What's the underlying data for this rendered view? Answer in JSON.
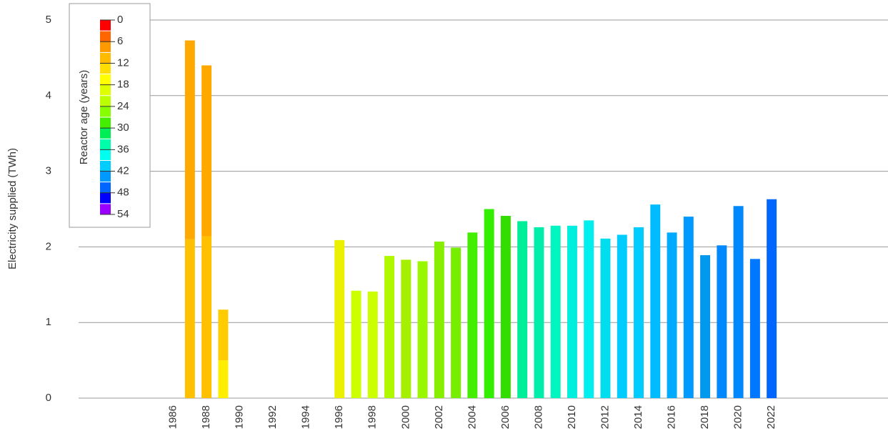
{
  "chart_data": {
    "type": "bar",
    "y_label": "Electricity supplied (TWh)",
    "xlim": [
      1980,
      2029
    ],
    "xticks": [
      1986,
      1988,
      1990,
      1992,
      1994,
      1996,
      1998,
      2000,
      2002,
      2004,
      2006,
      2008,
      2010,
      2012,
      2014,
      2016,
      2018,
      2020,
      2022
    ],
    "ylim": [
      0,
      5
    ],
    "yticks": [
      0,
      1,
      2,
      3,
      4,
      5
    ],
    "grid": true,
    "bars": [
      {
        "x": 1987,
        "segments": [
          {
            "value": 2.1,
            "color": "#ffc000"
          },
          {
            "value": 2.63,
            "color": "#ffa800"
          }
        ]
      },
      {
        "x": 1988,
        "segments": [
          {
            "value": 2.14,
            "color": "#ffc000"
          },
          {
            "value": 2.26,
            "color": "#ffa800"
          }
        ]
      },
      {
        "x": 1989,
        "segments": [
          {
            "value": 0.5,
            "color": "#ffee00"
          },
          {
            "value": 0.67,
            "color": "#ffcc00"
          }
        ]
      },
      {
        "x": 1996,
        "segments": [
          {
            "value": 2.09,
            "color": "#eaf000"
          }
        ]
      },
      {
        "x": 1997,
        "segments": [
          {
            "value": 1.42,
            "color": "#ccff00"
          }
        ]
      },
      {
        "x": 1998,
        "segments": [
          {
            "value": 1.41,
            "color": "#ccff00"
          }
        ]
      },
      {
        "x": 1999,
        "segments": [
          {
            "value": 1.88,
            "color": "#b0f800"
          }
        ]
      },
      {
        "x": 2000,
        "segments": [
          {
            "value": 1.83,
            "color": "#a5f000"
          }
        ]
      },
      {
        "x": 2001,
        "segments": [
          {
            "value": 1.81,
            "color": "#99f800"
          }
        ]
      },
      {
        "x": 2002,
        "segments": [
          {
            "value": 2.07,
            "color": "#88ee00"
          }
        ]
      },
      {
        "x": 2003,
        "segments": [
          {
            "value": 1.99,
            "color": "#77ee00"
          }
        ]
      },
      {
        "x": 2004,
        "segments": [
          {
            "value": 2.19,
            "color": "#44ee00"
          }
        ]
      },
      {
        "x": 2005,
        "segments": [
          {
            "value": 2.5,
            "color": "#33ee00"
          }
        ]
      },
      {
        "x": 2006,
        "segments": [
          {
            "value": 2.41,
            "color": "#33dd00"
          }
        ]
      },
      {
        "x": 2007,
        "segments": [
          {
            "value": 2.34,
            "color": "#00ee99"
          }
        ]
      },
      {
        "x": 2008,
        "segments": [
          {
            "value": 2.26,
            "color": "#00eeaa"
          }
        ]
      },
      {
        "x": 2009,
        "segments": [
          {
            "value": 2.28,
            "color": "#00f5c0"
          }
        ]
      },
      {
        "x": 2010,
        "segments": [
          {
            "value": 2.28,
            "color": "#00eedd"
          }
        ]
      },
      {
        "x": 2011,
        "segments": [
          {
            "value": 2.35,
            "color": "#00eeee"
          }
        ]
      },
      {
        "x": 2012,
        "segments": [
          {
            "value": 2.11,
            "color": "#00ddee"
          }
        ]
      },
      {
        "x": 2013,
        "segments": [
          {
            "value": 2.16,
            "color": "#00ccff"
          }
        ]
      },
      {
        "x": 2014,
        "segments": [
          {
            "value": 2.26,
            "color": "#00ccff"
          }
        ]
      },
      {
        "x": 2015,
        "segments": [
          {
            "value": 2.56,
            "color": "#00bbff"
          }
        ]
      },
      {
        "x": 2016,
        "segments": [
          {
            "value": 2.19,
            "color": "#00aaff"
          }
        ]
      },
      {
        "x": 2017,
        "segments": [
          {
            "value": 2.4,
            "color": "#0099ff"
          }
        ]
      },
      {
        "x": 2018,
        "segments": [
          {
            "value": 1.89,
            "color": "#0099ee"
          }
        ]
      },
      {
        "x": 2019,
        "segments": [
          {
            "value": 2.02,
            "color": "#0088ff"
          }
        ]
      },
      {
        "x": 2020,
        "segments": [
          {
            "value": 2.54,
            "color": "#0088ff"
          }
        ]
      },
      {
        "x": 2021,
        "segments": [
          {
            "value": 1.84,
            "color": "#0077ff"
          }
        ]
      },
      {
        "x": 2022,
        "segments": [
          {
            "value": 2.63,
            "color": "#0066ff"
          }
        ]
      }
    ],
    "colorbar": {
      "label": "Reactor age (years)",
      "lim": [
        0,
        54
      ],
      "ticks": [
        0,
        6,
        12,
        18,
        24,
        30,
        36,
        42,
        48,
        54
      ],
      "minor_ticks": [
        3,
        9,
        15,
        21,
        27,
        33,
        39,
        45,
        51
      ],
      "colors": [
        "#ff0000",
        "#ff6600",
        "#ff9900",
        "#ffbb00",
        "#ffdd00",
        "#ffff00",
        "#ddff00",
        "#bbff00",
        "#88ff00",
        "#44ee00",
        "#00ee55",
        "#00ffaa",
        "#00ffee",
        "#00ccff",
        "#0099ff",
        "#0066ff",
        "#0000ff",
        "#9900ff"
      ]
    }
  }
}
